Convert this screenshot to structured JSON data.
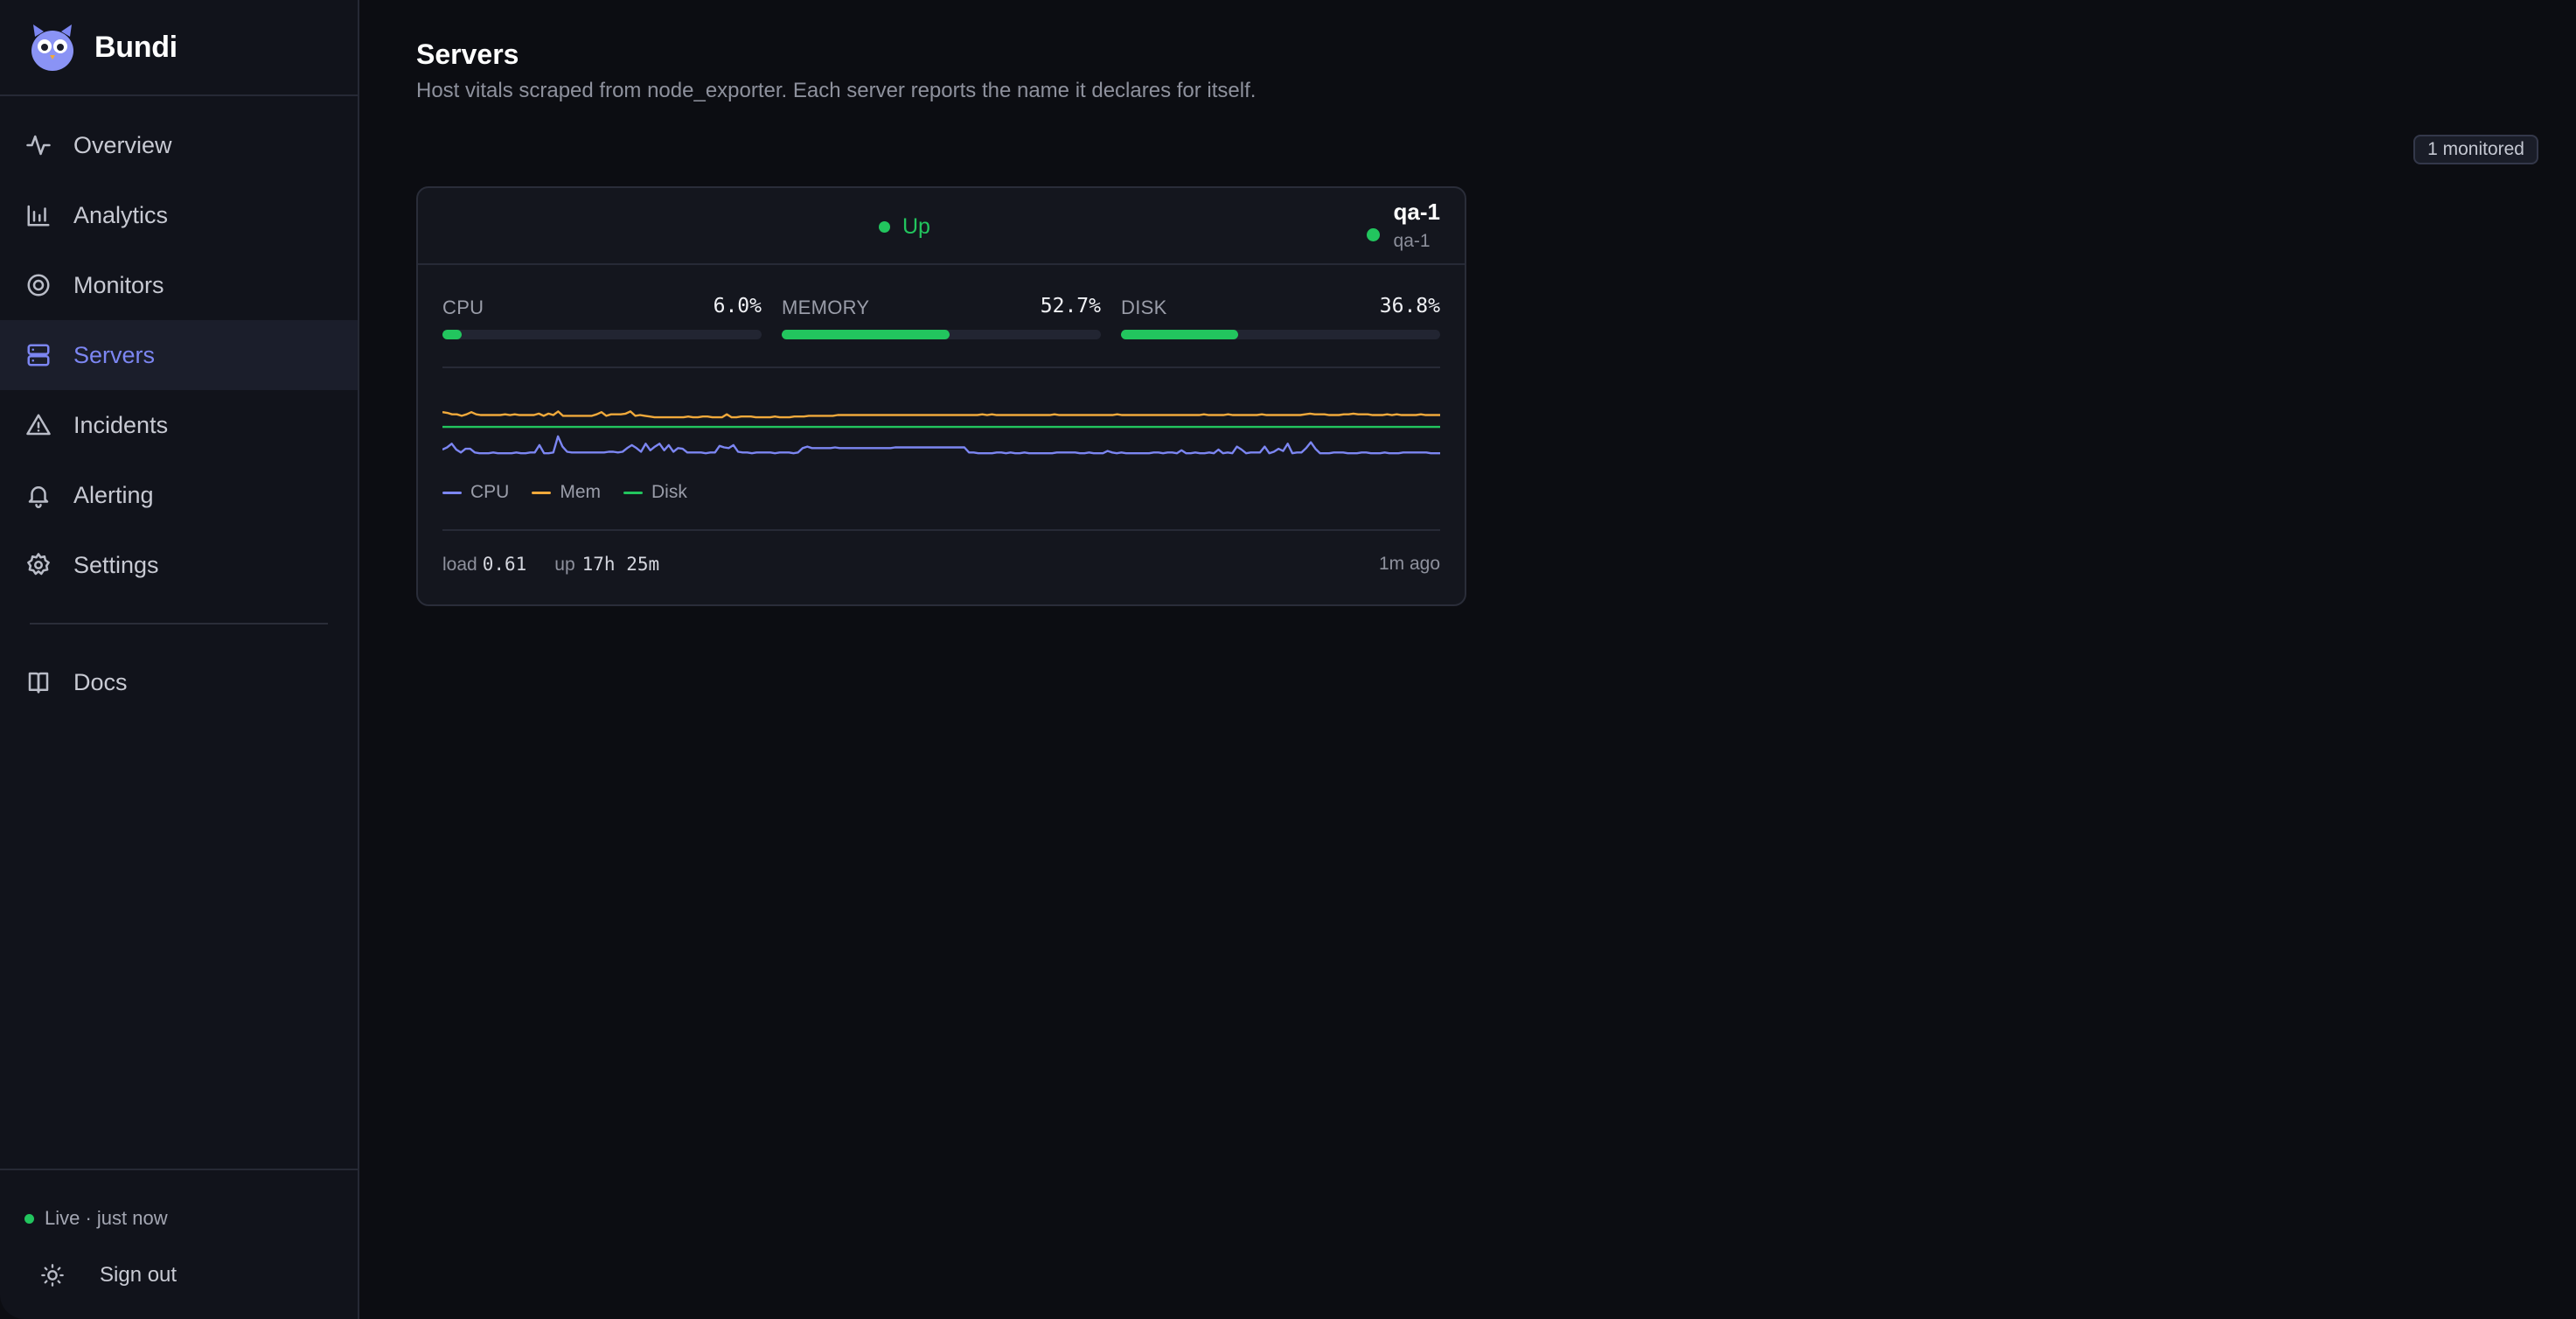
{
  "app": {
    "name": "Bundi"
  },
  "nav": {
    "items": [
      {
        "label": "Overview",
        "icon": "activity-icon"
      },
      {
        "label": "Analytics",
        "icon": "bar-chart-icon"
      },
      {
        "label": "Monitors",
        "icon": "target-icon"
      },
      {
        "label": "Servers",
        "icon": "server-icon",
        "active": true
      },
      {
        "label": "Incidents",
        "icon": "warning-icon"
      },
      {
        "label": "Alerting",
        "icon": "bell-icon"
      },
      {
        "label": "Settings",
        "icon": "gear-icon"
      }
    ],
    "docs": {
      "label": "Docs",
      "icon": "book-icon"
    }
  },
  "footer": {
    "live": "Live · just now",
    "signout": "Sign out"
  },
  "page": {
    "title": "Servers",
    "subtitle": "Host vitals scraped from node_exporter. Each server reports the name it declares for itself.",
    "badge": "1 monitored"
  },
  "server": {
    "status": "Up",
    "name": "qa-1",
    "hostname": "qa-1",
    "metrics": {
      "cpu": {
        "label": "CPU",
        "value": "6.0%",
        "fraction": 0.06
      },
      "memory": {
        "label": "MEMORY",
        "value": "52.7%",
        "fraction": 0.527
      },
      "disk": {
        "label": "DISK",
        "value": "36.8%",
        "fraction": 0.368
      }
    },
    "legend": {
      "cpu": "CPU",
      "mem": "Mem",
      "disk": "Disk"
    },
    "load_label": "load",
    "load_value": "0.61",
    "up_label": "up",
    "up_value": "17h 25m",
    "last_seen": "1m ago"
  },
  "colors": {
    "accent": "#7c86f2",
    "up": "#22c55e",
    "cpu_line": "#7c86f2",
    "mem_line": "#f0a93b",
    "disk_line": "#22c55e"
  },
  "chart_data": {
    "type": "line",
    "ylim": [
      0,
      100
    ],
    "series": [
      {
        "name": "CPU",
        "values": [
          6,
          9,
          14,
          6,
          2,
          7,
          7,
          2,
          1,
          1,
          1,
          2,
          1,
          1,
          1,
          1,
          2,
          1,
          1,
          2,
          2,
          12,
          1,
          1,
          2,
          24,
          10,
          3,
          2,
          2,
          2,
          2,
          2,
          2,
          2,
          2,
          3,
          3,
          2,
          3,
          8,
          12,
          8,
          3,
          14,
          5,
          10,
          14,
          5,
          12,
          3,
          8,
          7,
          2,
          2,
          2,
          2,
          1,
          2,
          2,
          11,
          9,
          8,
          12,
          3,
          2,
          2,
          1,
          2,
          2,
          2,
          2,
          1,
          2,
          2,
          2,
          1,
          2,
          8,
          10,
          8,
          8,
          8,
          8,
          8,
          9,
          8,
          8,
          8,
          8,
          8,
          8,
          8,
          8,
          8,
          8,
          8,
          8,
          9,
          9,
          9,
          9,
          9,
          9,
          9,
          9,
          9,
          9,
          9,
          9,
          9,
          9,
          9,
          9,
          2,
          2,
          1,
          1,
          1,
          1,
          2,
          2,
          1,
          2,
          1,
          1,
          2,
          1,
          1,
          1,
          1,
          1,
          1,
          2,
          2,
          2,
          2,
          2,
          1,
          1,
          2,
          1,
          1,
          1,
          4,
          2,
          1,
          2,
          1,
          1,
          1,
          1,
          1,
          1,
          2,
          2,
          1,
          2,
          2,
          1,
          5,
          1,
          1,
          2,
          1,
          1,
          2,
          1,
          6,
          1,
          2,
          1,
          10,
          6,
          1,
          2,
          2,
          2,
          10,
          1,
          3,
          7,
          4,
          14,
          1,
          2,
          2,
          8,
          16,
          7,
          1,
          1,
          1,
          2,
          2,
          2,
          1,
          1,
          1,
          2,
          2,
          1,
          1,
          1,
          2,
          1,
          1,
          1,
          2,
          2,
          2,
          2,
          2,
          2,
          1,
          1,
          1
        ]
      },
      {
        "name": "Mem",
        "values": [
          57,
          56,
          54,
          54,
          52,
          54,
          57,
          54,
          53,
          53,
          53,
          53,
          53,
          54,
          53,
          54,
          53,
          53,
          53,
          53,
          55,
          52,
          55,
          53,
          58,
          52,
          52,
          52,
          52,
          52,
          52,
          52,
          54,
          57,
          52,
          54,
          54,
          54,
          55,
          58,
          52,
          53,
          52,
          51,
          50,
          50,
          50,
          50,
          50,
          50,
          50,
          51,
          50,
          50,
          51,
          51,
          50,
          50,
          50,
          54,
          50,
          50,
          51,
          51,
          51,
          50,
          50,
          50,
          50,
          51,
          50,
          50,
          50,
          51,
          51,
          51,
          52,
          52,
          52,
          52,
          52,
          52,
          53,
          53,
          53,
          53,
          53,
          53,
          53,
          53,
          53,
          53,
          53,
          53,
          53,
          53,
          53,
          53,
          53,
          53,
          53,
          53,
          53,
          53,
          53,
          53,
          53,
          53,
          53,
          53,
          53,
          53,
          54,
          53,
          54,
          53,
          53,
          53,
          53,
          53,
          53,
          53,
          53,
          53,
          53,
          53,
          53,
          54,
          53,
          53,
          53,
          53,
          53,
          53,
          53,
          53,
          53,
          53,
          53,
          53,
          54,
          53,
          53,
          53,
          53,
          53,
          53,
          53,
          53,
          53,
          53,
          53,
          53,
          53,
          53,
          53,
          53,
          53,
          54,
          53,
          53,
          53,
          53,
          54,
          53,
          53,
          53,
          53,
          53,
          53,
          54,
          53,
          53,
          53,
          53,
          53,
          53,
          53,
          53,
          54,
          55,
          54,
          54,
          54,
          53,
          53,
          53,
          54,
          54,
          55,
          54,
          54,
          54,
          53,
          53,
          53,
          54,
          53,
          54,
          53,
          53,
          53,
          53,
          54,
          53,
          53,
          53,
          53
        ]
      },
      {
        "name": "Disk",
        "values": [
          36.8,
          36.8,
          36.8,
          36.8,
          36.8,
          36.8,
          36.8,
          36.8,
          36.8,
          36.8,
          36.8,
          36.8,
          36.8,
          36.8,
          36.8,
          36.8,
          36.8,
          36.8,
          36.8,
          36.8,
          36.8,
          36.8,
          36.8,
          36.8,
          36.8,
          36.8,
          36.8,
          36.8,
          36.8,
          36.8
        ]
      }
    ]
  }
}
